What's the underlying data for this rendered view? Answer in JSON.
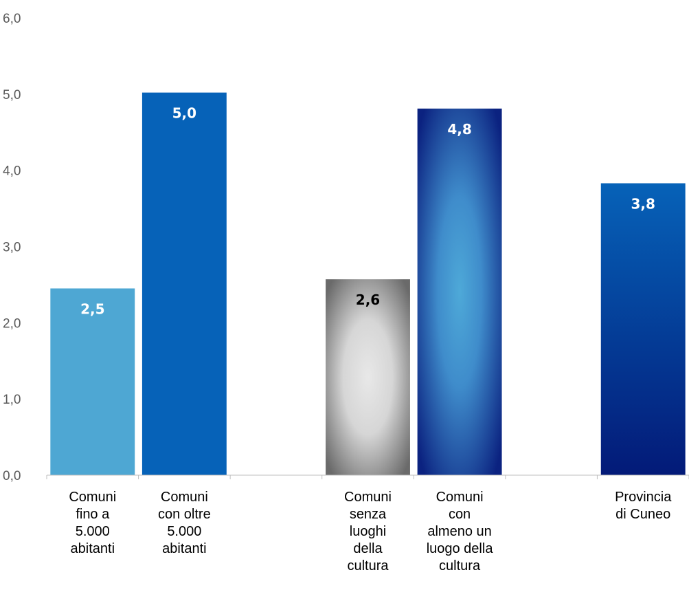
{
  "chart_data": {
    "type": "bar",
    "ylim": [
      0,
      6
    ],
    "yticks": [
      "0,0",
      "1,0",
      "2,0",
      "3,0",
      "4,0",
      "5,0",
      "6,0"
    ],
    "grid": false,
    "slots": 7,
    "categories": [
      {
        "slot": 0,
        "lines": [
          "Comuni",
          "fino a",
          "5.000",
          "abitanti"
        ]
      },
      {
        "slot": 1,
        "lines": [
          "Comuni",
          "con oltre",
          "5.000",
          "abitanti"
        ]
      },
      {
        "slot": 3,
        "lines": [
          "Comuni",
          "senza",
          "luoghi",
          "della",
          "cultura"
        ]
      },
      {
        "slot": 4,
        "lines": [
          "Comuni",
          "con",
          "almeno un",
          "luogo della",
          "cultura"
        ]
      },
      {
        "slot": 6,
        "lines": [
          "Provincia",
          "di Cuneo"
        ]
      }
    ],
    "values": [
      2.45,
      5.02,
      2.57,
      4.81,
      3.83
    ],
    "data_labels": [
      "2,5",
      "5,0",
      "2,6",
      "4,8",
      "3,8"
    ],
    "bar_fills": [
      "light-blue",
      "blue",
      "grey-radial",
      "navy-radial",
      "navy-linear"
    ],
    "label_colors": [
      "#ffffff",
      "#ffffff",
      "#000000",
      "#ffffff",
      "#ffffff"
    ],
    "colors": {
      "light_blue": "#4ea7d3",
      "blue": "#0662b8",
      "grey_center": "#e6e6e6",
      "grey_edge": "#6e6e6e",
      "navy_center": "#4ba7d6",
      "navy_edge": "#0c2580",
      "navy_dark": "#041d7e",
      "axis": "#bfbfbf"
    }
  }
}
